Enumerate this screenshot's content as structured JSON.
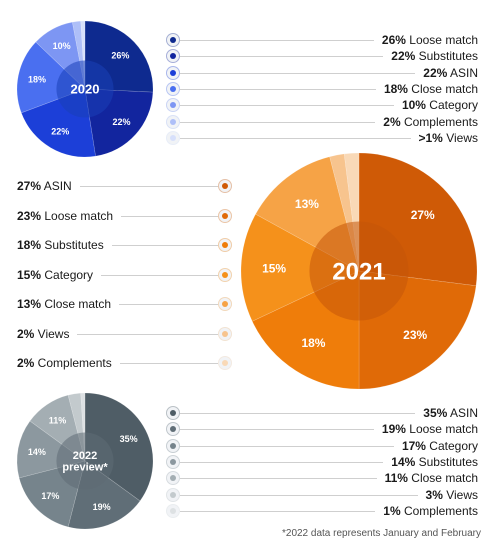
{
  "chart_data": [
    {
      "type": "pie",
      "title": "2020",
      "center_label": "2020",
      "labels": [
        "Loose match",
        "Substitutes",
        "ASIN",
        "Close match",
        "Category",
        "Complements",
        "Views"
      ],
      "values": [
        26,
        22,
        22,
        18,
        10,
        2,
        1
      ],
      "value_labels": [
        "26%",
        "22%",
        "22%",
        "18%",
        "10%",
        "2%",
        ">1%"
      ],
      "slice_labels": [
        "26%",
        "22%",
        "22%",
        "18%",
        "10%",
        "",
        ""
      ],
      "colors": [
        "#0e2a8f",
        "#12259e",
        "#1c3fd8",
        "#4a6ff0",
        "#7d96f3",
        "#aebff8",
        "#d7e0fb"
      ],
      "center_color": "#1a3fb8",
      "legend": "right"
    },
    {
      "type": "pie",
      "title": "2021",
      "center_label": "2021",
      "labels": [
        "ASIN",
        "Loose match",
        "Substitutes",
        "Category",
        "Close match",
        "Views",
        "Complements"
      ],
      "values": [
        27,
        23,
        18,
        15,
        13,
        2,
        2
      ],
      "value_labels": [
        "27%",
        "23%",
        "18%",
        "15%",
        "13%",
        "2%",
        "2%"
      ],
      "slice_labels": [
        "27%",
        "23%",
        "18%",
        "15%",
        "13%",
        "",
        ""
      ],
      "colors": [
        "#cf5a06",
        "#e06a07",
        "#ef7d0a",
        "#f5911b",
        "#f6a346",
        "#f7c48e",
        "#f9d9b7"
      ],
      "center_color": "#c4560a",
      "legend": "left"
    },
    {
      "type": "pie",
      "title": "2022 preview*",
      "center_label_1": "2022",
      "center_label_2": "preview*",
      "labels": [
        "ASIN",
        "Loose match",
        "Category",
        "Substitutes",
        "Close match",
        "Views",
        "Complements"
      ],
      "values": [
        35,
        19,
        17,
        14,
        11,
        3,
        1
      ],
      "value_labels": [
        "35%",
        "19%",
        "17%",
        "14%",
        "11%",
        "3%",
        "1%"
      ],
      "slice_labels": [
        "35%",
        "19%",
        "17%",
        "14%",
        "11%",
        "",
        ""
      ],
      "colors": [
        "#4f5d66",
        "#606e77",
        "#76848c",
        "#8c989f",
        "#a4aeb3",
        "#c3cacd",
        "#dde1e3"
      ],
      "center_color": "#5f6c74",
      "legend": "right"
    }
  ],
  "footnote": "*2022 data represents January and February"
}
